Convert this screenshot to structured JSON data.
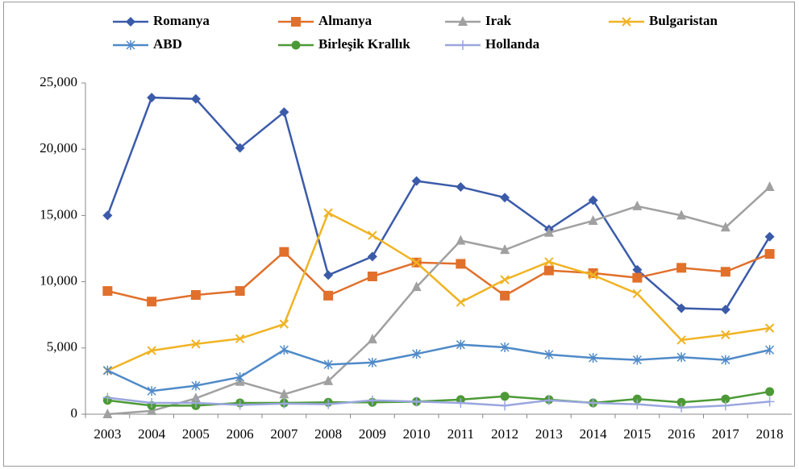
{
  "chart_data": {
    "type": "line",
    "categories": [
      "2003",
      "2004",
      "2005",
      "2006",
      "2007",
      "2008",
      "2009",
      "2010",
      "2011",
      "2012",
      "2013",
      "2014",
      "2015",
      "2016",
      "2017",
      "2018"
    ],
    "ylim": [
      0,
      25000
    ],
    "yticks": [
      0,
      {
        "value": 5000,
        "label": "5,000"
      },
      {
        "value": 10000,
        "label": "10,000"
      },
      {
        "value": 15000,
        "label": "15,000"
      },
      {
        "value": 20000,
        "label": "20,000"
      },
      {
        "value": 25000,
        "label": "25,000"
      }
    ],
    "grid": false,
    "legend": "top",
    "series": [
      {
        "name": "Romanya",
        "color": "#3b5ba9",
        "marker": "diamond",
        "values": [
          15000,
          23900,
          23800,
          20100,
          22800,
          10500,
          11900,
          17600,
          17150,
          16350,
          13950,
          16150,
          10900,
          8000,
          7900,
          13400
        ]
      },
      {
        "name": "Almanya",
        "color": "#e0702c",
        "marker": "square",
        "values": [
          9300,
          8500,
          9000,
          9300,
          12250,
          8950,
          10400,
          11450,
          11350,
          8950,
          10850,
          10650,
          10300,
          11050,
          10750,
          12100
        ]
      },
      {
        "name": "Irak",
        "color": "#a0a0a0",
        "marker": "triangle",
        "values": [
          0,
          250,
          1200,
          2450,
          1500,
          2500,
          5650,
          9600,
          13100,
          12400,
          13700,
          14600,
          15700,
          15000,
          14100,
          17150
        ]
      },
      {
        "name": "Bulgaristan",
        "color": "#f0b323",
        "marker": "x",
        "values": [
          3300,
          4800,
          5300,
          5700,
          6800,
          15200,
          13500,
          11450,
          8450,
          10150,
          11500,
          10500,
          9100,
          5600,
          6000,
          6500
        ]
      },
      {
        "name": "ABD",
        "color": "#4f8ac8",
        "marker": "star",
        "values": [
          3300,
          1750,
          2150,
          2800,
          4850,
          3750,
          3900,
          4550,
          5250,
          5050,
          4500,
          4250,
          4100,
          4300,
          4100,
          4850
        ]
      },
      {
        "name": "Birleşik Krallık",
        "color": "#4c9a36",
        "marker": "circle",
        "values": [
          1050,
          650,
          650,
          850,
          850,
          900,
          900,
          950,
          1100,
          1350,
          1100,
          850,
          1150,
          900,
          1150,
          1700
        ]
      },
      {
        "name": "Hollanda",
        "color": "#9aa6de",
        "marker": "plus",
        "values": [
          1250,
          850,
          850,
          700,
          800,
          750,
          1050,
          950,
          850,
          650,
          1050,
          850,
          750,
          500,
          650,
          950
        ]
      }
    ]
  }
}
